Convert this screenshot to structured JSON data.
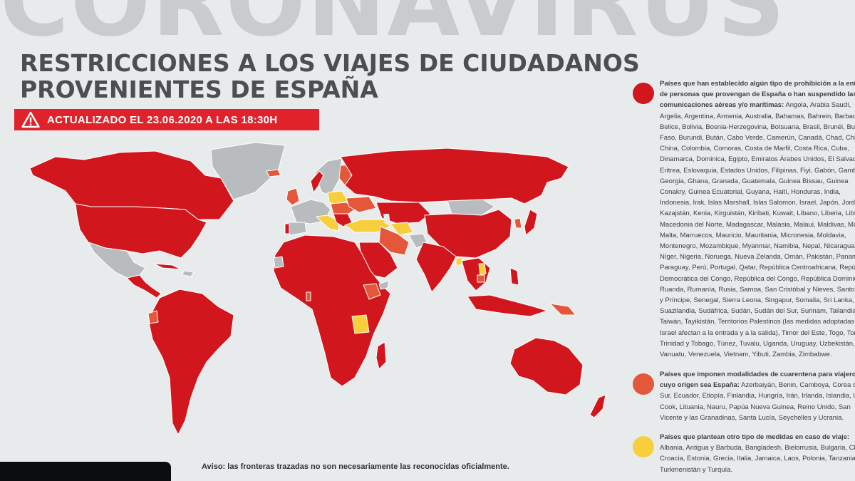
{
  "background_word": "CORONAVIRUS",
  "title": {
    "line1": "RESTRICCIONES A LOS VIAJES DE CIUDADANOS",
    "line2": "PROVENIENTES DE ESPAÑA"
  },
  "update_badge": "ACTUALIZADO EL 23.06.2020 A LAS 18:30H",
  "legend": [
    {
      "color": "#d1161d",
      "heading": "Países que han establecido algún tipo de prohibición a la entrada de personas que provengan de España o han suspendido las comunicaciones aéreas y/o marítimas:",
      "countries": "Angola, Arabia Saudí, Argelia, Argentina, Armenia, Australia, Bahamas, Bahrein, Barbados, Belice, Bolivia, Bosnia-Herzegovina, Botsuana, Brasil, Brunéi, Burkina Faso, Burundi, Bután, Cabo Verde, Camerún, Canadá, Chad, Chile, China, Colombia, Comoras, Costa de Marfil, Costa Rica, Cuba, Dinamarca, Dominica, Egipto, Emiratos Árabes Unidos, El Salvador, Eritrea, Eslovaquia, Estados Unidos, Filipinas, Fiyi, Gabón, Gambia, Georgia, Ghana, Granada, Guatemala, Guinea Bissau, Guinea Conakry, Guinea Ecuatorial, Guyana, Haití, Honduras, India, Indonesia, Irak, Islas Marshall, Islas Salomon, Israel, Japón, Jordania, Kazajstán, Kenia, Kirguistán, Kiribati, Kuwait, Líbano, Liberia, Libia, Macedonia del Norte, Madagascar, Malasia, Malaui, Maldivas, Malí, Malta, Marruecos, Mauricio, Mauritania, Micronesia, Moldavia, Montenegro, Mozambique, Myanmar, Namibia, Nepal, Nicaragua, Níger, Nigeria, Noruega, Nueva Zelanda, Omán, Pakistán, Panamá, Paraguay, Perú, Portugal, Qatar, República Centroafricana, República Democrática del Congo, República del Congo, República Dominicana, Ruanda, Rumanía, Rusia, Samoa, San Cristóbal y Nieves, Santo Tomé y Príncipe, Senegal, Sierra Leona, Singapur, Somalia, Sri Lanka, Suazilandia, Sudáfrica, Sudán, Sudán del Sur, Surinam, Tailandia, Taiwán, Tayikistán, Territorios Palestinos (las medidas adoptadas por Israel afectan a la entrada y a la salida), Timor del Este, Togo, Tonga, Trinidad y Tobago, Túnez, Tuvalu, Uganda, Uruguay, Uzbekistán, Vanuatu, Venezuela, Vietnam, Yibuti, Zambia, Zimbabwe."
    },
    {
      "color": "#e4573a",
      "heading": "Países que imponen modalidades de cuarentena para viajeros cuyo origen sea España:",
      "countries": " Azerbaiyán, Benin, Camboya, Corea del Sur, Ecuador, Etiopía, Finlandia, Hungría, Irán, Irlanda, Islandia, Islas Cook, Lituania, Nauru, Papúa Nueva Guinea, Reino Unido, San Vicente y las Granadinas, Santa Lucía, Seychelles y Ucrania."
    },
    {
      "color": "#f7cf3d",
      "heading": "Países que plantean otro tipo de medidas en caso de viaje:",
      "countries": " Albania, Antigua y Barbuda, Bangladesh, Bielorrusia, Bulgaria, Chipre, Croacia, Estonia, Grecia, Italia, Jamaica, Laos, Polonia, Tanzania, Turkmenistán y Turquía."
    }
  ],
  "disclaimer": "Aviso: las fronteras trazadas no son necesariamente las reconocidas oficialmente.",
  "colors": {
    "prohibition": "#d1161d",
    "quarantine": "#e4573a",
    "other_measures": "#f7cf3d",
    "no_restriction": "#b9bcbe",
    "badge": "#e0222b"
  },
  "icons": {
    "badge_icon": "warning-triangle-icon"
  }
}
